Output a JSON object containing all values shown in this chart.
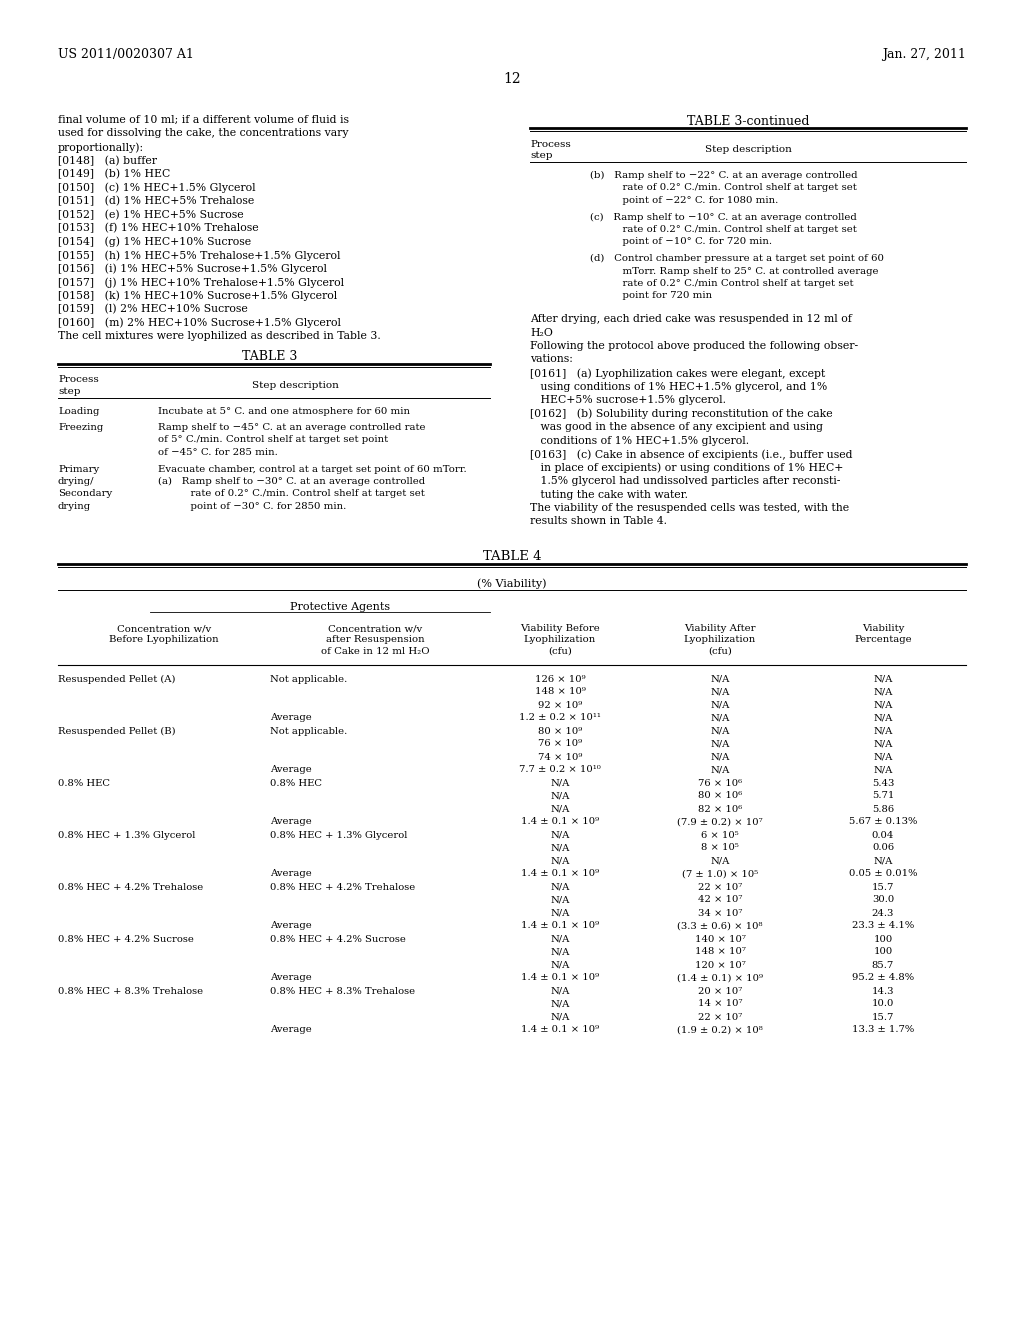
{
  "background_color": "#ffffff",
  "header_left": "US 2011/0020307 A1",
  "header_right": "Jan. 27, 2011",
  "page_number": "12",
  "left_items": [
    "final volume of 10 ml; if a different volume of fluid is",
    "used for dissolving the cake, the concentrations vary",
    "proportionally):",
    "[0148]   (a) buffer",
    "[0149]   (b) 1% HEC",
    "[0150]   (c) 1% HEC+1.5% Glycerol",
    "[0151]   (d) 1% HEC+5% Trehalose",
    "[0152]   (e) 1% HEC+5% Sucrose",
    "[0153]   (f) 1% HEC+10% Trehalose",
    "[0154]   (g) 1% HEC+10% Sucrose",
    "[0155]   (h) 1% HEC+5% Trehalose+1.5% Glycerol",
    "[0156]   (i) 1% HEC+5% Sucrose+1.5% Glycerol",
    "[0157]   (j) 1% HEC+10% Trehalose+1.5% Glycerol",
    "[0158]   (k) 1% HEC+10% Sucrose+1.5% Glycerol",
    "[0159]   (l) 2% HEC+10% Sucrose",
    "[0160]   (m) 2% HEC+10% Sucrose+1.5% Glycerol",
    "The cell mixtures were lyophilized as described in Table 3."
  ],
  "table3_title": "TABLE 3",
  "table3_rows": [
    [
      "Loading",
      "Incubate at 5° C. and one atmosphere for 60 min"
    ],
    [
      "Freezing",
      "Ramp shelf to −45° C. at an average controlled rate\nof 5° C./min. Control shelf at target set point\nof −45° C. for 285 min."
    ],
    [
      "Primary\ndrying/\nSecondary\ndrying",
      "Evacuate chamber, control at a target set point of 60 mTorr.\n(a)   Ramp shelf to −30° C. at an average controlled\n          rate of 0.2° C./min. Control shelf at target set\n          point of −30° C. for 2850 min."
    ]
  ],
  "table3c_title": "TABLE 3-continued",
  "table3c_rows": [
    "(b)   Ramp shelf to −22° C. at an average controlled\n          rate of 0.2° C./min. Control shelf at target set\n          point of −22° C. for 1080 min.",
    "(c)   Ramp shelf to −10° C. at an average controlled\n          rate of 0.2° C./min. Control shelf at target set\n          point of −10° C. for 720 min.",
    "(d)   Control chamber pressure at a target set point of 60\n          mTorr. Ramp shelf to 25° C. at controlled average\n          rate of 0.2° C./min Control shelf at target set\n          point for 720 min"
  ],
  "right_para_lines": [
    "After drying, each dried cake was resuspended in 12 ml of",
    "H₂O",
    "Following the protocol above produced the following obser-",
    "vations:",
    "[0161]   (a) Lyophilization cakes were elegant, except",
    "   using conditions of 1% HEC+1.5% glycerol, and 1%",
    "   HEC+5% sucrose+1.5% glycerol.",
    "[0162]   (b) Solubility during reconstitution of the cake",
    "   was good in the absence of any excipient and using",
    "   conditions of 1% HEC+1.5% glycerol.",
    "[0163]   (c) Cake in absence of excipients (i.e., buffer used",
    "   in place of excipients) or using conditions of 1% HEC+",
    "   1.5% glycerol had undissolved particles after reconsti-",
    "   tuting the cake with water.",
    "The viability of the resuspended cells was tested, with the",
    "results shown in Table 4."
  ],
  "table4_title": "TABLE 4",
  "table4_subtitle": "(% Viability)",
  "table4_protective": "Protective Agents",
  "table4_col_headers": [
    [
      "Concentration w/v",
      "Before Lyophilization"
    ],
    [
      "Concentration w/v",
      "after Resuspension",
      "of Cake in 12 ml H₂O"
    ],
    [
      "Viability Before",
      "Lyophilization",
      "(cfu)"
    ],
    [
      "Viability After",
      "Lyophilization",
      "(cfu)"
    ],
    [
      "Viability",
      "Percentage"
    ]
  ],
  "table4_rows": [
    [
      "Resuspended Pellet (A)",
      "Not applicable.",
      "126 × 10⁹",
      "N/A",
      "N/A"
    ],
    [
      "",
      "",
      "148 × 10⁹",
      "N/A",
      "N/A"
    ],
    [
      "",
      "",
      "92 × 10⁹",
      "N/A",
      "N/A"
    ],
    [
      "",
      "Average",
      "1.2 ± 0.2 × 10¹¹",
      "N/A",
      "N/A"
    ],
    [
      "Resuspended Pellet (B)",
      "Not applicable.",
      "80 × 10⁹",
      "N/A",
      "N/A"
    ],
    [
      "",
      "",
      "76 × 10⁹",
      "N/A",
      "N/A"
    ],
    [
      "",
      "",
      "74 × 10⁹",
      "N/A",
      "N/A"
    ],
    [
      "",
      "Average",
      "7.7 ± 0.2 × 10¹⁰",
      "N/A",
      "N/A"
    ],
    [
      "0.8% HEC",
      "0.8% HEC",
      "N/A",
      "76 × 10⁶",
      "5.43"
    ],
    [
      "",
      "",
      "N/A",
      "80 × 10⁶",
      "5.71"
    ],
    [
      "",
      "",
      "N/A",
      "82 × 10⁶",
      "5.86"
    ],
    [
      "",
      "Average",
      "1.4 ± 0.1 × 10⁹",
      "(7.9 ± 0.2) × 10⁷",
      "5.67 ± 0.13%"
    ],
    [
      "0.8% HEC + 1.3% Glycerol",
      "0.8% HEC + 1.3% Glycerol",
      "N/A",
      "6 × 10⁵",
      "0.04"
    ],
    [
      "",
      "",
      "N/A",
      "8 × 10⁵",
      "0.06"
    ],
    [
      "",
      "",
      "N/A",
      "N/A",
      "N/A"
    ],
    [
      "",
      "Average",
      "1.4 ± 0.1 × 10⁹",
      "(7 ± 1.0) × 10⁵",
      "0.05 ± 0.01%"
    ],
    [
      "0.8% HEC + 4.2% Trehalose",
      "0.8% HEC + 4.2% Trehalose",
      "N/A",
      "22 × 10⁷",
      "15.7"
    ],
    [
      "",
      "",
      "N/A",
      "42 × 10⁷",
      "30.0"
    ],
    [
      "",
      "",
      "N/A",
      "34 × 10⁷",
      "24.3"
    ],
    [
      "",
      "Average",
      "1.4 ± 0.1 × 10⁹",
      "(3.3 ± 0.6) × 10⁸",
      "23.3 ± 4.1%"
    ],
    [
      "0.8% HEC + 4.2% Sucrose",
      "0.8% HEC + 4.2% Sucrose",
      "N/A",
      "140 × 10⁷",
      "100"
    ],
    [
      "",
      "",
      "N/A",
      "148 × 10⁷",
      "100"
    ],
    [
      "",
      "",
      "N/A",
      "120 × 10⁷",
      "85.7"
    ],
    [
      "",
      "Average",
      "1.4 ± 0.1 × 10⁹",
      "(1.4 ± 0.1) × 10⁹",
      "95.2 ± 4.8%"
    ],
    [
      "0.8% HEC + 8.3% Trehalose",
      "0.8% HEC + 8.3% Trehalose",
      "N/A",
      "20 × 10⁷",
      "14.3"
    ],
    [
      "",
      "",
      "N/A",
      "14 × 10⁷",
      "10.0"
    ],
    [
      "",
      "",
      "N/A",
      "22 × 10⁷",
      "15.7"
    ],
    [
      "",
      "Average",
      "1.4 ± 0.1 × 10⁹",
      "(1.9 ± 0.2) × 10⁸",
      "13.3 ± 1.7%"
    ]
  ]
}
